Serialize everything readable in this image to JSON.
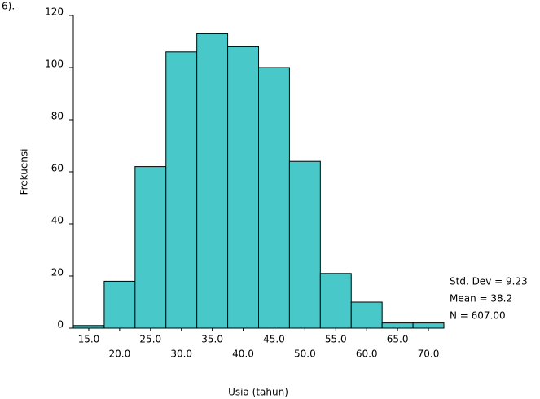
{
  "corner_text": "6).",
  "chart_data": {
    "type": "histogram",
    "x_label": "Usia (tahun)",
    "y_label": "Frekuensi",
    "bins": [
      12.5,
      17.5,
      22.5,
      27.5,
      32.5,
      37.5,
      42.5,
      47.5,
      52.5,
      57.5,
      62.5,
      67.5,
      72.5
    ],
    "values": [
      1,
      18,
      62,
      106,
      113,
      108,
      100,
      64,
      21,
      10,
      2,
      2
    ],
    "color": "#48c8c8",
    "xlim": [
      12.5,
      72.5
    ],
    "xticks": [
      {
        "value": 15,
        "label": "15.0"
      },
      {
        "value": 20,
        "label": "20.0"
      },
      {
        "value": 25,
        "label": "25.0"
      },
      {
        "value": 30,
        "label": "30.0"
      },
      {
        "value": 35,
        "label": "35.0"
      },
      {
        "value": 40,
        "label": "40.0"
      },
      {
        "value": 45,
        "label": "45.0"
      },
      {
        "value": 50,
        "label": "50.0"
      },
      {
        "value": 55,
        "label": "55.0"
      },
      {
        "value": 60,
        "label": "60.0"
      },
      {
        "value": 65,
        "label": "65.0"
      },
      {
        "value": 70,
        "label": "70.0"
      }
    ],
    "ylim": [
      0,
      120
    ],
    "yticks": [
      0,
      20,
      40,
      60,
      80,
      100,
      120
    ],
    "annotations": [
      "Std. Dev = 9.23",
      "Mean = 38.2",
      "N = 607.00"
    ]
  }
}
